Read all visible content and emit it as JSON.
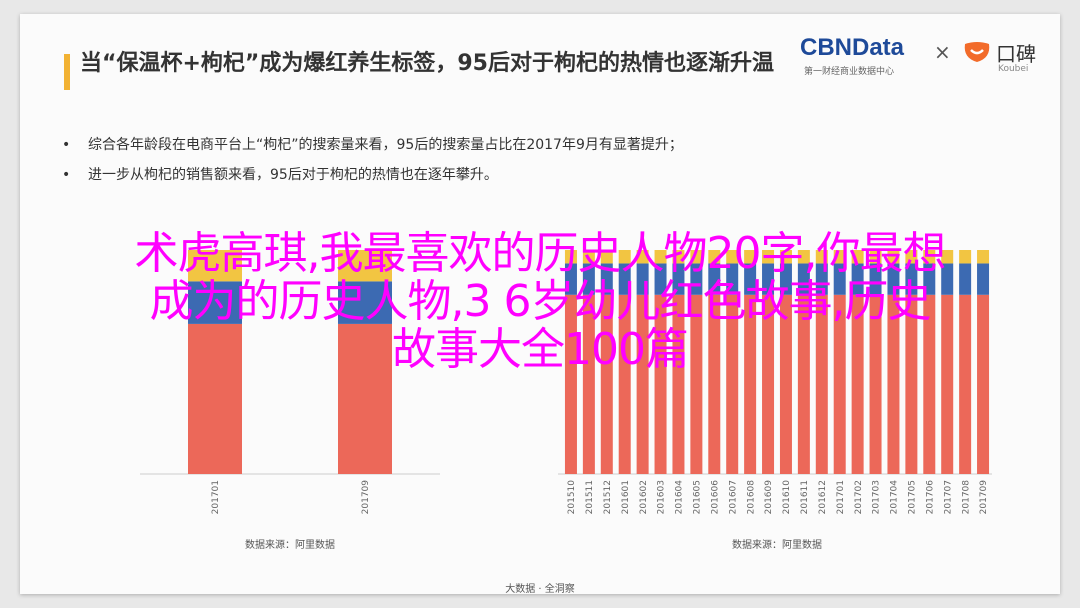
{
  "slide": {
    "title": "当“保温杯+枸杞”成为爆红养生标签，95后对于枸杞的热情也逐渐升温",
    "brand": {
      "cbn": "CBNData",
      "cbn_sub": "第一财经商业数据中心",
      "times": "×",
      "koubei": "口碑",
      "koubei_sub": "Koubei"
    },
    "bullets": [
      "综合各年龄段在电商平台上“枸杞”的搜索量来看，95后的搜索量占比在2017年9月有显著提升；",
      "进一步从枸杞的销售额来看，95后对于枸杞的热情也在逐年攀升。"
    ],
    "footer": "大数据 · 全洞察"
  },
  "colors": {
    "red": "#ec6859",
    "blue": "#3c6ab2",
    "yellow": "#f2c542",
    "overlay": "#ff00ff"
  },
  "overlay_lines": [
    "术虎高琪,我最喜欢的历史人物20字,你最想",
    "成为的历史人物,3 6岁幼儿红色故事,历史",
    "故事大全100篇"
  ],
  "chart_data": [
    {
      "type": "bar",
      "stacked": true,
      "categories": [
        "201701",
        "201709"
      ],
      "series": [
        {
          "values": [
            67,
            67
          ]
        },
        {
          "values": [
            19,
            19
          ]
        },
        {
          "values": [
            14,
            14
          ]
        }
      ],
      "ylim": [
        0,
        100
      ],
      "source": "数据来源：阿里数据"
    },
    {
      "type": "bar",
      "stacked": true,
      "categories": [
        "201510",
        "201511",
        "201512",
        "201601",
        "201602",
        "201603",
        "201604",
        "201605",
        "201606",
        "201607",
        "201608",
        "201609",
        "201610",
        "201611",
        "201612",
        "201701",
        "201702",
        "201703",
        "201704",
        "201705",
        "201706",
        "201707",
        "201708",
        "201709"
      ],
      "series": [
        {
          "values": [
            80,
            80,
            80,
            80,
            80,
            80,
            80,
            80,
            80,
            80,
            80,
            80,
            80,
            80,
            80,
            80,
            80,
            80,
            80,
            80,
            80,
            80,
            80,
            80
          ]
        },
        {
          "values": [
            14,
            14,
            14,
            14,
            14,
            14,
            14,
            14,
            14,
            14,
            14,
            14,
            14,
            14,
            14,
            14,
            14,
            14,
            14,
            14,
            14,
            14,
            14,
            14
          ]
        },
        {
          "values": [
            6,
            6,
            6,
            6,
            6,
            6,
            6,
            6,
            6,
            6,
            6,
            6,
            6,
            6,
            6,
            6,
            6,
            6,
            6,
            6,
            6,
            6,
            6,
            6
          ]
        }
      ],
      "ylim": [
        0,
        100
      ],
      "source": "数据来源：阿里数据"
    }
  ]
}
